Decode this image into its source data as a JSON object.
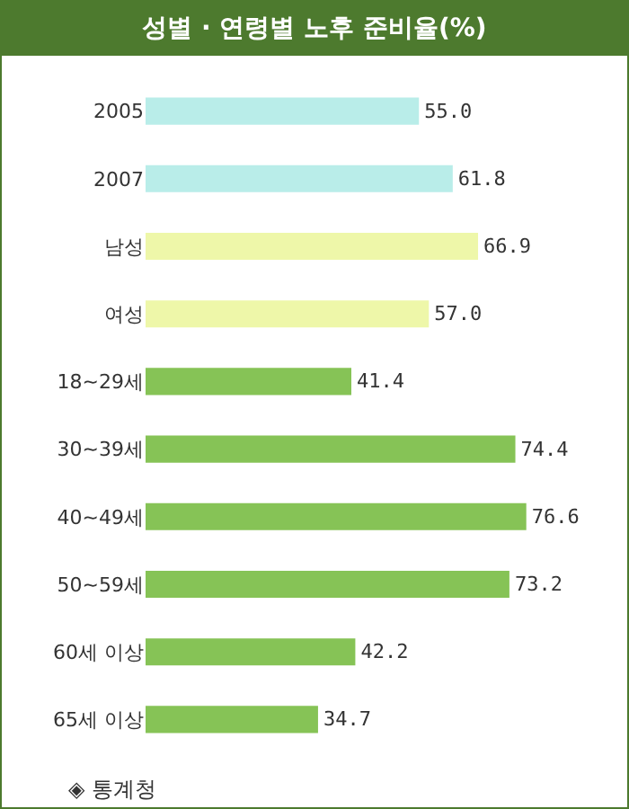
{
  "chart_data": {
    "type": "bar",
    "orientation": "horizontal",
    "title": "성별 · 연령별 노후 준비율(%)",
    "categories": [
      "2005",
      "2007",
      "남성",
      "여성",
      "18~29세",
      "30~39세",
      "40~49세",
      "50~59세",
      "60세 이상",
      "65세 이상"
    ],
    "values": [
      55.0,
      61.8,
      66.9,
      57.0,
      41.4,
      74.4,
      76.6,
      73.2,
      42.2,
      34.7
    ],
    "value_labels": [
      "55.0",
      "61.8",
      "66.9",
      "57.0",
      "41.4",
      "74.4",
      "76.6",
      "73.2",
      "42.2",
      "34.7"
    ],
    "colors": [
      "#b9ede9",
      "#b9ede9",
      "#eef7a9",
      "#eef7a9",
      "#86c356",
      "#86c356",
      "#86c356",
      "#86c356",
      "#86c356",
      "#86c356"
    ],
    "annotations": [
      "◈ 통계청"
    ]
  }
}
